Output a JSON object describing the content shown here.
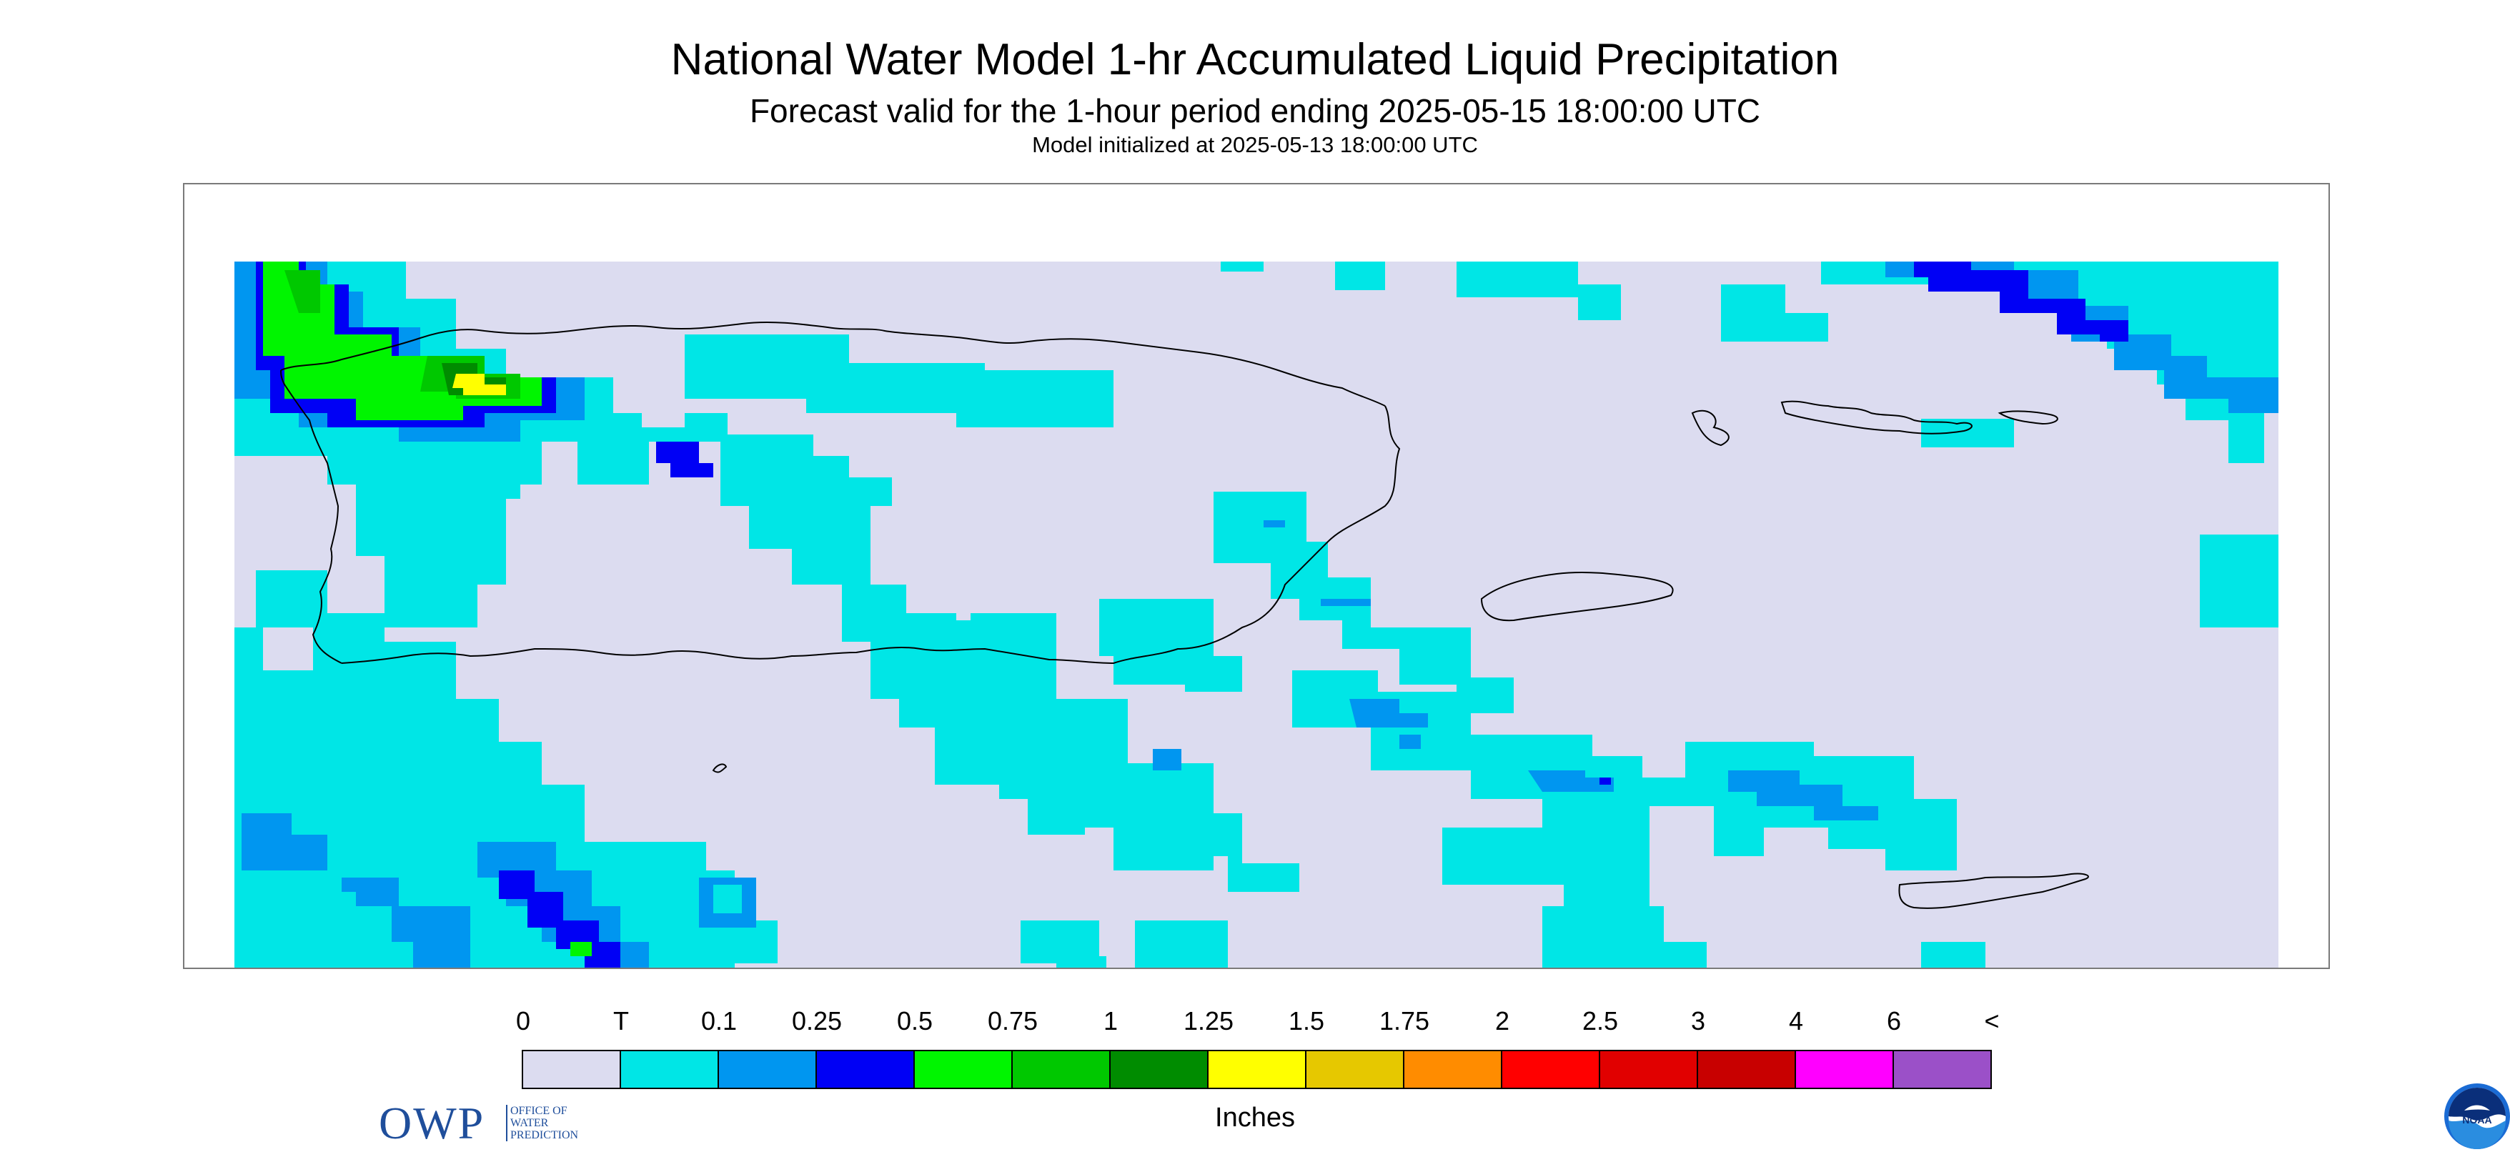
{
  "header": {
    "title": "National Water Model 1-hr Accumulated Liquid Precipitation",
    "subtitle": "Forecast valid for the 1-hour period ending 2025-05-15 18:00:00 UTC",
    "init_line": "Model initialized at 2025-05-13 18:00:00 UTC"
  },
  "logos": {
    "owp_abbrev": "OWP",
    "owp_full": [
      "OFFICE OF",
      "WATER",
      "PREDICTION"
    ],
    "noaa": "NOAA"
  },
  "legend": {
    "units": "Inches",
    "labels": [
      "0",
      "T",
      "0.1",
      "0.25",
      "0.5",
      "0.75",
      "1",
      "1.25",
      "1.5",
      "1.75",
      "2",
      "2.5",
      "3",
      "4",
      "6",
      "<"
    ],
    "colors": [
      "#dcdcf0",
      "#00e6e6",
      "#0096f0",
      "#0000f5",
      "#00f500",
      "#00c800",
      "#008c00",
      "#ffff00",
      "#e6c800",
      "#ff8c00",
      "#ff0000",
      "#e10000",
      "#c80000",
      "#ff00ff",
      "#9b50c8"
    ]
  },
  "map": {
    "background_color": "#dcdcf0",
    "region": "Puerto Rico and U.S. Virgin Islands"
  }
}
